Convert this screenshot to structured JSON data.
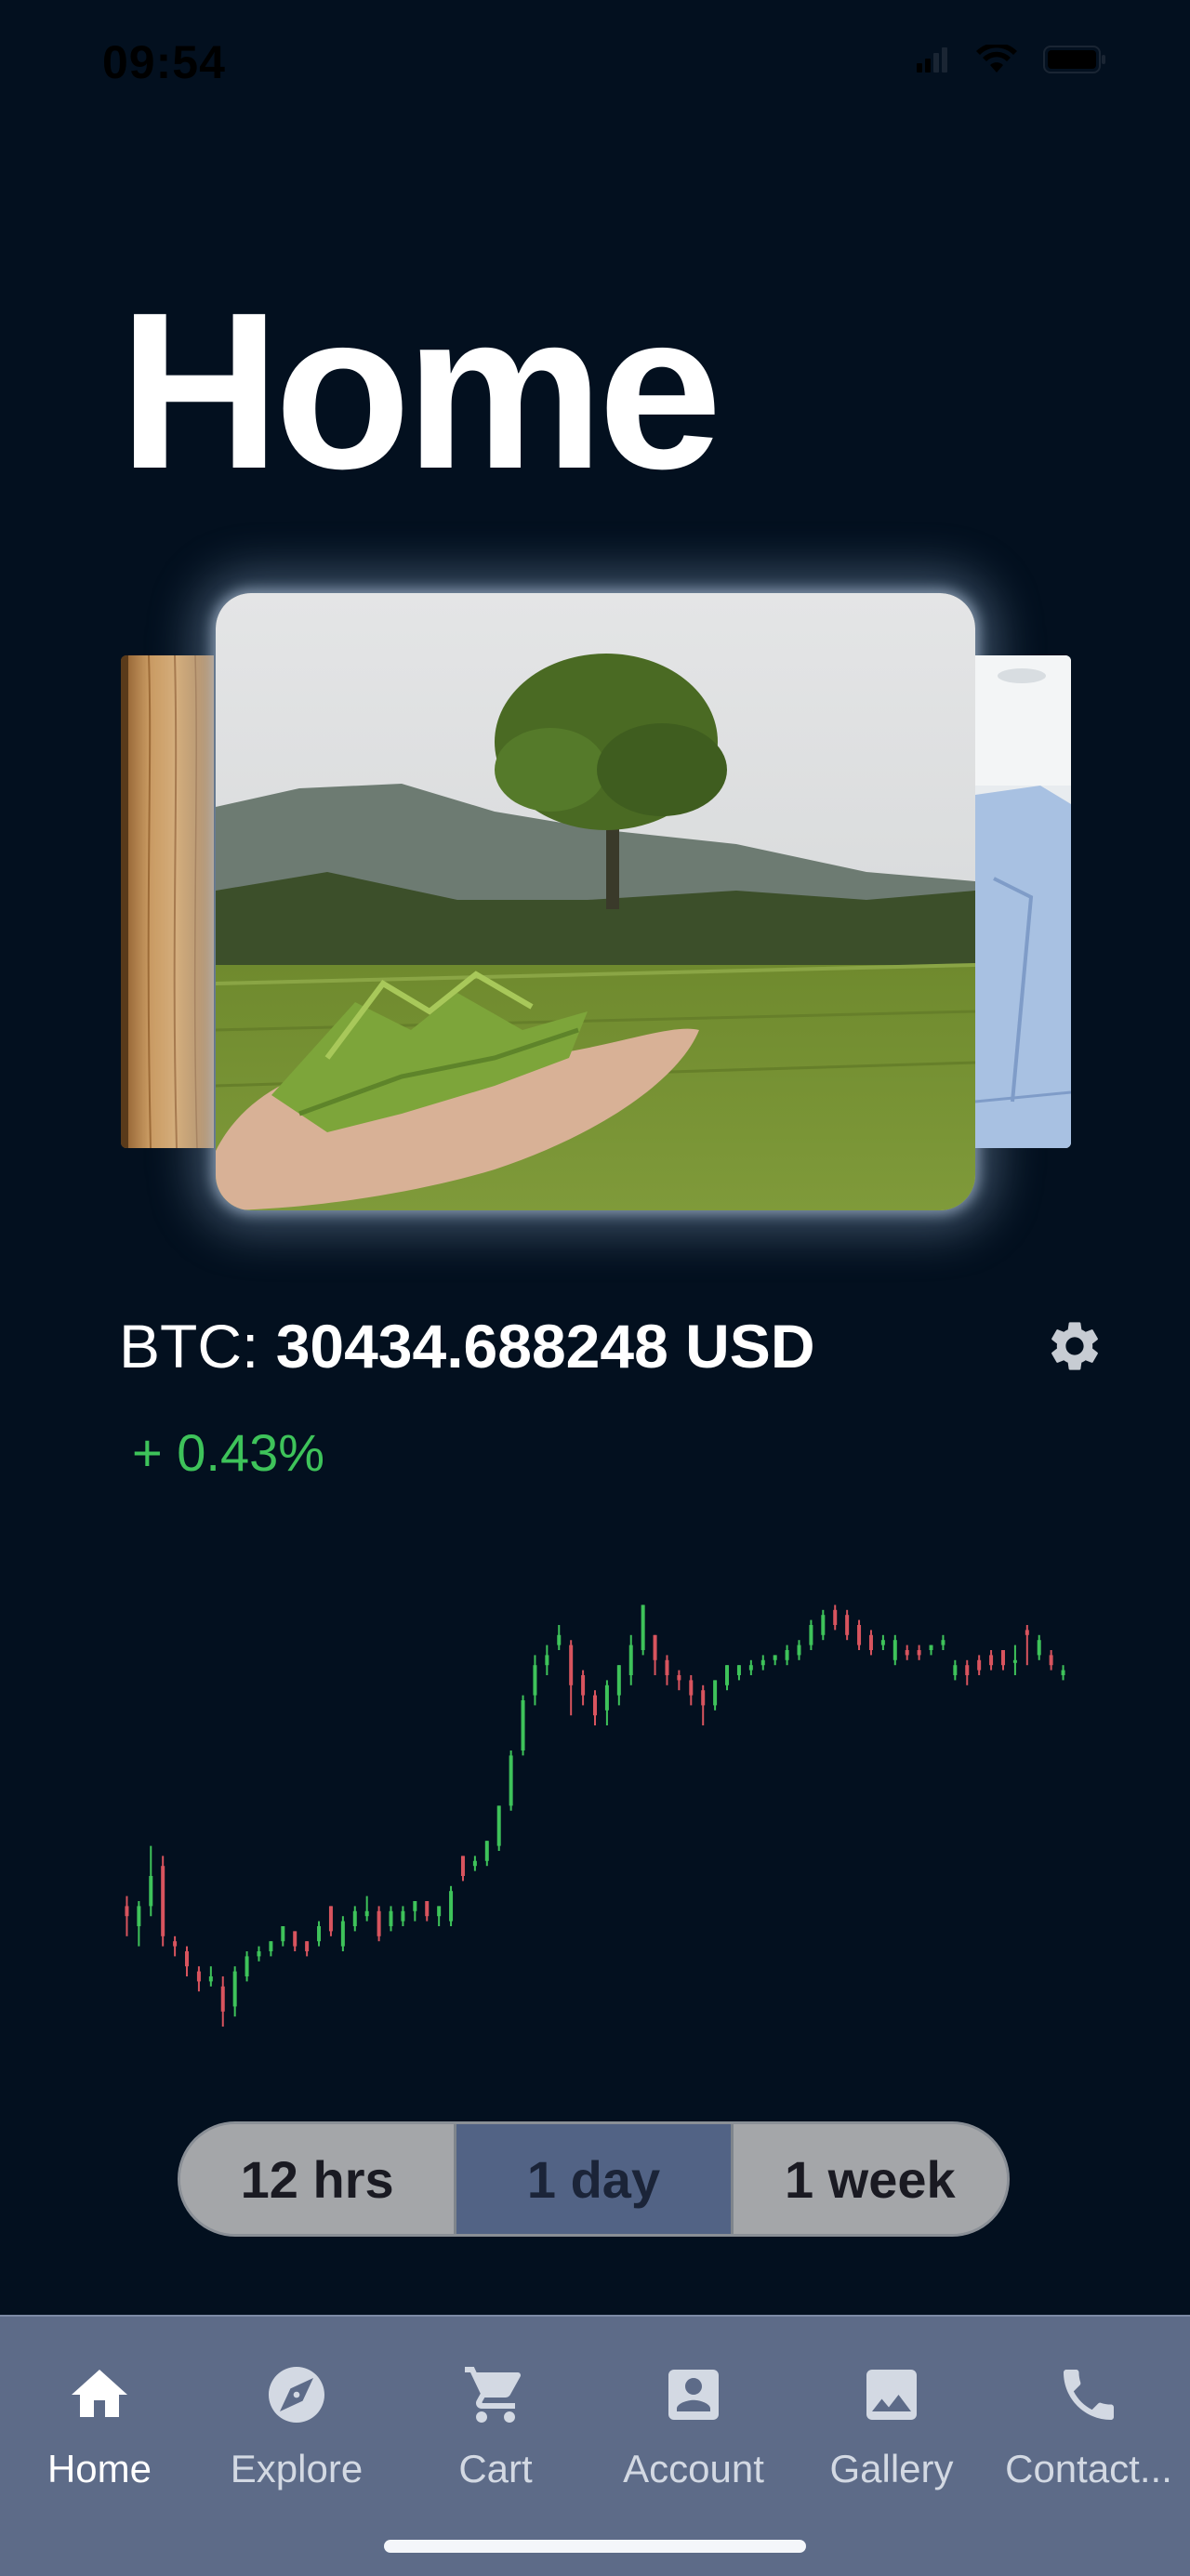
{
  "status_bar": {
    "time": "09:54"
  },
  "page": {
    "title": "Home"
  },
  "price": {
    "prefix": "BTC: ",
    "value": "30434.688248",
    "unit": " USD",
    "change": "+ 0.43%"
  },
  "colors": {
    "background": "#03101f",
    "up": "#3ec35a",
    "down": "#d8545e",
    "tab_bar": "#5d6b88",
    "segment_active": "#526385"
  },
  "range_selector": {
    "options": [
      "12 hrs",
      "1 day",
      "1 week"
    ],
    "selected": "1 day"
  },
  "tabs": [
    {
      "label": "Home",
      "icon": "home-icon",
      "active": true
    },
    {
      "label": "Explore",
      "icon": "compass-icon",
      "active": false
    },
    {
      "label": "Cart",
      "icon": "cart-icon",
      "active": false
    },
    {
      "label": "Account",
      "icon": "account-icon",
      "active": false
    },
    {
      "label": "Gallery",
      "icon": "gallery-icon",
      "active": false
    },
    {
      "label": "Contact...",
      "icon": "phone-icon",
      "active": false
    }
  ],
  "chart_data": {
    "type": "candlestick",
    "note_units": "relative price level 0-100",
    "candles": [
      {
        "o": 22,
        "c": 24,
        "h": 26,
        "l": 18,
        "up": false
      },
      {
        "o": 20,
        "c": 24,
        "h": 25,
        "l": 16,
        "up": true
      },
      {
        "o": 24,
        "c": 30,
        "h": 36,
        "l": 22,
        "up": true
      },
      {
        "o": 32,
        "c": 18,
        "h": 34,
        "l": 16,
        "up": false
      },
      {
        "o": 17,
        "c": 16,
        "h": 18,
        "l": 14,
        "up": false
      },
      {
        "o": 15,
        "c": 12,
        "h": 16,
        "l": 10,
        "up": false
      },
      {
        "o": 11,
        "c": 9,
        "h": 12,
        "l": 7,
        "up": false
      },
      {
        "o": 9,
        "c": 10,
        "h": 12,
        "l": 8,
        "up": true
      },
      {
        "o": 8,
        "c": 3,
        "h": 10,
        "l": 0,
        "up": false
      },
      {
        "o": 4,
        "c": 11,
        "h": 12,
        "l": 2,
        "up": true
      },
      {
        "o": 10,
        "c": 14,
        "h": 15,
        "l": 9,
        "up": true
      },
      {
        "o": 14,
        "c": 15,
        "h": 16,
        "l": 13,
        "up": true
      },
      {
        "o": 15,
        "c": 17,
        "h": 17,
        "l": 14,
        "up": true
      },
      {
        "o": 17,
        "c": 20,
        "h": 20,
        "l": 16,
        "up": true
      },
      {
        "o": 19,
        "c": 16,
        "h": 19,
        "l": 15,
        "up": false
      },
      {
        "o": 17,
        "c": 15,
        "h": 17,
        "l": 14,
        "up": false
      },
      {
        "o": 17,
        "c": 20,
        "h": 21,
        "l": 16,
        "up": true
      },
      {
        "o": 24,
        "c": 19,
        "h": 24,
        "l": 18,
        "up": false
      },
      {
        "o": 16,
        "c": 21,
        "h": 22,
        "l": 15,
        "up": true
      },
      {
        "o": 20,
        "c": 23,
        "h": 24,
        "l": 19,
        "up": true
      },
      {
        "o": 22,
        "c": 23,
        "h": 26,
        "l": 21,
        "up": true
      },
      {
        "o": 23,
        "c": 18,
        "h": 24,
        "l": 17,
        "up": false
      },
      {
        "o": 20,
        "c": 23,
        "h": 24,
        "l": 19,
        "up": true
      },
      {
        "o": 21,
        "c": 23,
        "h": 24,
        "l": 20,
        "up": true
      },
      {
        "o": 23,
        "c": 25,
        "h": 25,
        "l": 21,
        "up": true
      },
      {
        "o": 25,
        "c": 22,
        "h": 25,
        "l": 21,
        "up": false
      },
      {
        "o": 22,
        "c": 24,
        "h": 24,
        "l": 20,
        "up": true
      },
      {
        "o": 21,
        "c": 27,
        "h": 28,
        "l": 20,
        "up": true
      },
      {
        "o": 30,
        "c": 34,
        "h": 34,
        "l": 29,
        "up": false
      },
      {
        "o": 32,
        "c": 33,
        "h": 34,
        "l": 31,
        "up": true
      },
      {
        "o": 33,
        "c": 37,
        "h": 37,
        "l": 32,
        "up": true
      },
      {
        "o": 36,
        "c": 44,
        "h": 44,
        "l": 35,
        "up": true
      },
      {
        "o": 44,
        "c": 54,
        "h": 55,
        "l": 43,
        "up": true
      },
      {
        "o": 55,
        "c": 65,
        "h": 66,
        "l": 54,
        "up": true
      },
      {
        "o": 66,
        "c": 72,
        "h": 74,
        "l": 64,
        "up": true
      },
      {
        "o": 72,
        "c": 74,
        "h": 76,
        "l": 70,
        "up": true
      },
      {
        "o": 78,
        "c": 76,
        "h": 80,
        "l": 75,
        "up": true
      },
      {
        "o": 76,
        "c": 68,
        "h": 77,
        "l": 62,
        "up": false
      },
      {
        "o": 70,
        "c": 66,
        "h": 71,
        "l": 64,
        "up": false
      },
      {
        "o": 66,
        "c": 62,
        "h": 67,
        "l": 60,
        "up": false
      },
      {
        "o": 63,
        "c": 68,
        "h": 69,
        "l": 60,
        "up": true
      },
      {
        "o": 66,
        "c": 72,
        "h": 72,
        "l": 64,
        "up": true
      },
      {
        "o": 70,
        "c": 76,
        "h": 78,
        "l": 68,
        "up": true
      },
      {
        "o": 75,
        "c": 84,
        "h": 84,
        "l": 74,
        "up": true
      },
      {
        "o": 78,
        "c": 73,
        "h": 78,
        "l": 70,
        "up": false
      },
      {
        "o": 73,
        "c": 70,
        "h": 74,
        "l": 68,
        "up": false
      },
      {
        "o": 70,
        "c": 69,
        "h": 71,
        "l": 67,
        "up": false
      },
      {
        "o": 69,
        "c": 66,
        "h": 70,
        "l": 64,
        "up": false
      },
      {
        "o": 67,
        "c": 64,
        "h": 68,
        "l": 60,
        "up": false
      },
      {
        "o": 64,
        "c": 69,
        "h": 69,
        "l": 63,
        "up": true
      },
      {
        "o": 68,
        "c": 72,
        "h": 72,
        "l": 67,
        "up": true
      },
      {
        "o": 70,
        "c": 72,
        "h": 72,
        "l": 69,
        "up": true
      },
      {
        "o": 71,
        "c": 72,
        "h": 73,
        "l": 70,
        "up": true
      },
      {
        "o": 72,
        "c": 73,
        "h": 74,
        "l": 71,
        "up": true
      },
      {
        "o": 73,
        "c": 74,
        "h": 74,
        "l": 72,
        "up": true
      },
      {
        "o": 73,
        "c": 75,
        "h": 76,
        "l": 72,
        "up": true
      },
      {
        "o": 74,
        "c": 76,
        "h": 77,
        "l": 73,
        "up": true
      },
      {
        "o": 76,
        "c": 80,
        "h": 81,
        "l": 75,
        "up": true
      },
      {
        "o": 78,
        "c": 82,
        "h": 83,
        "l": 77,
        "up": true
      },
      {
        "o": 83,
        "c": 80,
        "h": 84,
        "l": 79,
        "up": false
      },
      {
        "o": 82,
        "c": 78,
        "h": 83,
        "l": 77,
        "up": false
      },
      {
        "o": 80,
        "c": 76,
        "h": 81,
        "l": 75,
        "up": false
      },
      {
        "o": 78,
        "c": 75,
        "h": 79,
        "l": 74,
        "up": false
      },
      {
        "o": 76,
        "c": 77,
        "h": 78,
        "l": 75,
        "up": true
      },
      {
        "o": 77,
        "c": 73,
        "h": 78,
        "l": 72,
        "up": true
      },
      {
        "o": 75,
        "c": 74,
        "h": 76,
        "l": 73,
        "up": false
      },
      {
        "o": 75,
        "c": 74,
        "h": 76,
        "l": 73,
        "up": false
      },
      {
        "o": 75,
        "c": 76,
        "h": 76,
        "l": 74,
        "up": true
      },
      {
        "o": 76,
        "c": 77,
        "h": 78,
        "l": 75,
        "up": true
      },
      {
        "o": 70,
        "c": 72,
        "h": 73,
        "l": 69,
        "up": true
      },
      {
        "o": 70,
        "c": 72,
        "h": 73,
        "l": 68,
        "up": false
      },
      {
        "o": 71,
        "c": 73,
        "h": 74,
        "l": 70,
        "up": false
      },
      {
        "o": 72,
        "c": 74,
        "h": 75,
        "l": 71,
        "up": false
      },
      {
        "o": 75,
        "c": 72,
        "h": 75,
        "l": 71,
        "up": false
      },
      {
        "o": 73,
        "c": 73,
        "h": 76,
        "l": 70,
        "up": true
      },
      {
        "o": 78,
        "c": 79,
        "h": 80,
        "l": 72,
        "up": false
      },
      {
        "o": 74,
        "c": 77,
        "h": 78,
        "l": 73,
        "up": true
      },
      {
        "o": 74,
        "c": 72,
        "h": 75,
        "l": 71,
        "up": false
      },
      {
        "o": 71,
        "c": 70,
        "h": 72,
        "l": 69,
        "up": true
      }
    ],
    "ylim": [
      0,
      100
    ]
  }
}
